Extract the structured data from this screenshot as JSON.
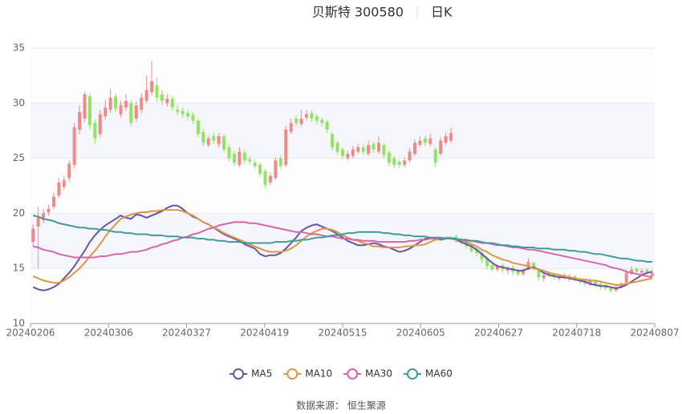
{
  "chart_data": {
    "type": "candlestick",
    "title": "贝斯特 300580",
    "subtitle": "日K",
    "source": "数据来源： 恒生聚源",
    "categories": [
      "20240206",
      null,
      null,
      null,
      null,
      null,
      null,
      null,
      null,
      null,
      null,
      null,
      null,
      null,
      null,
      "20240306",
      null,
      null,
      null,
      null,
      null,
      null,
      null,
      null,
      null,
      null,
      null,
      null,
      null,
      null,
      "20240327",
      null,
      null,
      null,
      null,
      null,
      null,
      null,
      null,
      null,
      null,
      null,
      null,
      null,
      null,
      "20240419",
      null,
      null,
      null,
      null,
      null,
      null,
      null,
      null,
      null,
      null,
      null,
      null,
      null,
      null,
      "20240515",
      null,
      null,
      null,
      null,
      null,
      null,
      null,
      null,
      null,
      null,
      null,
      null,
      null,
      null,
      "20240605",
      null,
      null,
      null,
      null,
      null,
      null,
      null,
      null,
      null,
      null,
      null,
      null,
      null,
      null,
      "20240627",
      null,
      null,
      null,
      null,
      null,
      null,
      null,
      null,
      null,
      null,
      null,
      null,
      null,
      null,
      "20240718",
      null,
      null,
      null,
      null,
      null,
      null,
      null,
      null,
      null,
      null,
      null,
      null,
      null,
      null,
      "20240807"
    ],
    "candles": {
      "open": [
        17.4,
        18.8,
        19.4,
        20.1,
        20.6,
        21.6,
        22.4,
        23.2,
        24.4,
        27.6,
        28.6,
        30.6,
        28.2,
        27.2,
        28.8,
        29.4,
        30.6,
        29.0,
        29.6,
        30.0,
        28.6,
        29.4,
        30.2,
        31.0,
        31.6,
        30.8,
        30.0,
        30.4,
        29.4,
        29.3,
        29.1,
        28.9,
        28.4,
        27.4,
        26.2,
        27.0,
        26.3,
        27.0,
        26.0,
        25.4,
        24.4,
        25.5,
        24.9,
        24.6,
        24.4,
        23.8,
        22.8,
        23.2,
        25.0,
        24.4,
        27.4,
        28.6,
        28.1,
        28.7,
        29.1,
        28.8,
        28.5,
        28.3,
        27.2,
        26.4,
        25.8,
        25.0,
        25.2,
        25.6,
        26.0,
        25.4,
        26.3,
        25.6,
        26.2,
        25.5,
        25.0,
        24.7,
        24.4,
        24.8,
        25.4,
        26.2,
        26.8,
        26.3,
        25.8,
        25.4,
        26.4,
        26.6,
        17.9,
        17.6,
        17.4,
        17.1,
        16.7,
        16.4,
        15.9,
        15.3,
        14.9,
        15.3,
        14.8,
        15.1,
        14.8,
        14.5,
        14.9,
        15.5,
        15.0,
        14.1,
        14.6,
        14.5,
        14.1,
        14.4,
        14.0,
        14.3,
        14.1,
        13.9,
        13.5,
        13.9,
        13.6,
        13.5,
        13.2,
        13.0,
        13.3,
        13.7,
        14.5,
        15.0,
        14.6,
        14.9,
        14.3
      ],
      "close": [
        18.6,
        19.6,
        20.0,
        20.4,
        21.5,
        22.8,
        23.0,
        24.5,
        27.8,
        29.2,
        30.8,
        28.0,
        26.8,
        29.0,
        29.6,
        30.5,
        29.5,
        29.8,
        30.2,
        28.2,
        29.8,
        30.5,
        31.2,
        32.0,
        30.5,
        30.2,
        30.4,
        29.6,
        29.2,
        29.0,
        28.8,
        28.4,
        27.2,
        26.4,
        26.8,
        26.6,
        27.0,
        25.8,
        25.0,
        24.6,
        25.6,
        24.8,
        24.7,
        24.3,
        23.6,
        22.6,
        23.4,
        24.8,
        24.3,
        27.6,
        28.2,
        28.2,
        28.6,
        29.0,
        28.6,
        28.4,
        28.2,
        27.6,
        26.0,
        25.6,
        25.2,
        25.4,
        25.8,
        26.0,
        25.6,
        26.2,
        25.8,
        26.4,
        25.3,
        24.6,
        24.4,
        24.4,
        24.8,
        25.6,
        26.4,
        26.6,
        26.4,
        26.8,
        24.6,
        26.6,
        27.0,
        27.3,
        17.6,
        17.3,
        17.0,
        16.6,
        16.4,
        15.8,
        15.2,
        14.9,
        15.2,
        14.9,
        15.0,
        14.7,
        14.5,
        14.8,
        15.6,
        15.0,
        14.2,
        14.4,
        14.4,
        14.2,
        14.3,
        14.1,
        14.3,
        14.0,
        13.8,
        13.6,
        13.9,
        13.5,
        13.4,
        13.2,
        13.0,
        13.3,
        13.6,
        14.6,
        14.9,
        14.7,
        14.8,
        14.7,
        14.6
      ],
      "high": [
        19.0,
        20.6,
        20.4,
        20.8,
        21.9,
        23.2,
        23.4,
        24.8,
        28.2,
        29.8,
        31.0,
        30.9,
        28.5,
        29.4,
        30.3,
        31.3,
        30.9,
        30.2,
        30.8,
        30.3,
        30.2,
        30.9,
        32.5,
        33.8,
        32.4,
        31.2,
        30.8,
        30.7,
        29.8,
        29.6,
        29.4,
        29.2,
        28.6,
        27.7,
        27.1,
        27.3,
        27.3,
        27.2,
        26.3,
        25.7,
        26.0,
        25.8,
        25.2,
        24.9,
        24.6,
        24.0,
        23.7,
        25.1,
        25.3,
        27.9,
        28.6,
        28.9,
        29.4,
        29.4,
        29.3,
        29.0,
        28.7,
        28.5,
        27.4,
        26.6,
        26.0,
        25.7,
        26.1,
        26.3,
        26.3,
        26.6,
        26.5,
        27.0,
        26.4,
        25.7,
        25.2,
        24.9,
        25.1,
        25.9,
        26.7,
        27.0,
        27.0,
        27.2,
        26.0,
        26.9,
        27.3,
        27.8,
        18.1,
        17.8,
        17.6,
        17.3,
        16.9,
        16.6,
        16.1,
        15.5,
        15.4,
        15.5,
        15.2,
        15.3,
        15.0,
        15.0,
        15.9,
        15.6,
        15.1,
        14.6,
        14.8,
        14.6,
        14.5,
        14.6,
        14.5,
        14.4,
        14.2,
        14.0,
        14.1,
        14.0,
        13.7,
        13.6,
        13.3,
        13.5,
        13.8,
        14.9,
        15.2,
        15.1,
        15.0,
        15.0,
        14.9
      ],
      "low": [
        17.0,
        15.0,
        19.1,
        19.8,
        20.4,
        21.4,
        22.1,
        22.9,
        24.1,
        27.2,
        28.3,
        27.6,
        26.3,
        26.9,
        28.5,
        29.1,
        29.2,
        28.7,
        29.3,
        27.9,
        28.3,
        29.1,
        30.0,
        30.7,
        30.1,
        29.8,
        29.7,
        29.3,
        28.9,
        28.7,
        28.5,
        28.1,
        26.9,
        26.1,
        26.0,
        26.3,
        26.0,
        25.5,
        24.7,
        24.3,
        24.2,
        24.5,
        24.4,
        24.0,
        23.3,
        22.3,
        22.6,
        23.0,
        24.0,
        24.2,
        27.2,
        27.9,
        27.9,
        28.4,
        28.3,
        28.1,
        27.9,
        27.3,
        25.7,
        25.3,
        24.9,
        24.8,
        25.0,
        25.4,
        25.3,
        25.2,
        25.5,
        25.4,
        25.0,
        24.3,
        24.1,
        24.1,
        24.2,
        24.6,
        25.2,
        26.0,
        26.1,
        26.1,
        24.2,
        25.2,
        26.2,
        26.4,
        17.3,
        17.1,
        16.8,
        16.4,
        16.1,
        15.5,
        14.9,
        14.7,
        14.7,
        14.6,
        14.5,
        14.4,
        14.3,
        14.3,
        14.8,
        14.8,
        13.9,
        13.8,
        14.2,
        14.0,
        13.9,
        13.9,
        13.8,
        13.8,
        13.6,
        13.4,
        13.4,
        13.3,
        13.1,
        13.0,
        12.8,
        12.9,
        13.2,
        13.6,
        14.4,
        14.5,
        14.5,
        14.5,
        14.2
      ]
    },
    "up_color": "#f08a8a",
    "down_color": "#92e35f",
    "series": [
      {
        "name": "MA5",
        "color": "#6b54a6",
        "values": [
          13.3,
          13.1,
          13.0,
          13.1,
          13.3,
          13.6,
          14.1,
          14.6,
          15.2,
          15.9,
          16.6,
          17.4,
          18.0,
          18.5,
          18.9,
          19.2,
          19.5,
          19.8,
          19.6,
          19.5,
          19.9,
          19.8,
          19.6,
          19.8,
          20.0,
          20.2,
          20.5,
          20.7,
          20.7,
          20.4,
          20.0,
          19.7,
          19.5,
          19.2,
          19.0,
          18.7,
          18.4,
          18.1,
          17.9,
          17.7,
          17.5,
          17.2,
          17.0,
          16.8,
          16.3,
          16.1,
          16.2,
          16.2,
          16.4,
          16.8,
          17.3,
          17.8,
          18.4,
          18.7,
          18.9,
          19.0,
          18.8,
          18.6,
          18.4,
          18.1,
          17.8,
          17.5,
          17.3,
          17.1,
          17.1,
          17.2,
          17.3,
          17.2,
          17.0,
          16.9,
          16.7,
          16.5,
          16.6,
          16.8,
          17.1,
          17.4,
          17.7,
          17.8,
          17.7,
          17.6,
          17.7,
          17.7,
          17.6,
          17.4,
          17.2,
          17.0,
          16.7,
          16.3,
          15.9,
          15.5,
          15.2,
          15.1,
          15.0,
          14.9,
          14.8,
          14.8,
          15.0,
          15.1,
          14.9,
          14.6,
          14.4,
          14.3,
          14.2,
          14.2,
          14.1,
          14.0,
          13.9,
          13.8,
          13.6,
          13.5,
          13.4,
          13.4,
          13.3,
          13.2,
          13.3,
          13.5,
          13.8,
          14.1,
          14.4,
          14.6,
          14.7
        ]
      },
      {
        "name": "MA10",
        "color": "#dc9645",
        "values": [
          14.3,
          14.1,
          13.9,
          13.8,
          13.7,
          13.7,
          13.9,
          14.2,
          14.6,
          15.0,
          15.5,
          16.1,
          16.6,
          17.2,
          17.9,
          18.5,
          19.0,
          19.5,
          19.7,
          19.9,
          20.0,
          20.1,
          20.1,
          20.2,
          20.2,
          20.3,
          20.3,
          20.3,
          20.3,
          20.2,
          20.0,
          19.8,
          19.5,
          19.2,
          19.0,
          18.7,
          18.5,
          18.2,
          18.0,
          17.8,
          17.6,
          17.4,
          17.2,
          17.0,
          16.8,
          16.6,
          16.5,
          16.5,
          16.5,
          16.6,
          16.8,
          17.1,
          17.5,
          17.9,
          18.2,
          18.4,
          18.6,
          18.6,
          18.5,
          18.3,
          18.0,
          17.8,
          17.6,
          17.5,
          17.3,
          17.2,
          17.0,
          17.0,
          16.9,
          16.9,
          16.9,
          16.9,
          17.0,
          17.0,
          17.1,
          17.1,
          17.2,
          17.4,
          17.6,
          17.7,
          17.8,
          17.8,
          17.7,
          17.6,
          17.4,
          17.2,
          17.0,
          16.7,
          16.5,
          16.2,
          16.0,
          15.8,
          15.7,
          15.5,
          15.4,
          15.3,
          15.2,
          15.0,
          14.9,
          14.8,
          14.6,
          14.5,
          14.4,
          14.3,
          14.2,
          14.1,
          14.0,
          14.0,
          13.9,
          13.9,
          13.8,
          13.7,
          13.6,
          13.5,
          13.5,
          13.6,
          13.7,
          13.8,
          13.9,
          14.0,
          14.1
        ]
      },
      {
        "name": "MA30",
        "color": "#d565ad",
        "values": [
          17.0,
          16.9,
          16.7,
          16.6,
          16.5,
          16.3,
          16.2,
          16.1,
          16.0,
          16.0,
          16.0,
          16.0,
          16.0,
          16.1,
          16.1,
          16.2,
          16.3,
          16.3,
          16.4,
          16.5,
          16.5,
          16.6,
          16.7,
          16.9,
          17.0,
          17.2,
          17.3,
          17.5,
          17.6,
          17.8,
          17.9,
          18.1,
          18.2,
          18.4,
          18.6,
          18.7,
          18.9,
          19.0,
          19.1,
          19.2,
          19.2,
          19.2,
          19.1,
          19.1,
          19.0,
          18.9,
          18.8,
          18.7,
          18.6,
          18.5,
          18.4,
          18.3,
          18.3,
          18.2,
          18.1,
          18.1,
          18.0,
          17.9,
          17.9,
          17.8,
          17.7,
          17.7,
          17.6,
          17.6,
          17.5,
          17.5,
          17.5,
          17.4,
          17.4,
          17.4,
          17.4,
          17.4,
          17.4,
          17.5,
          17.5,
          17.6,
          17.6,
          17.7,
          17.7,
          17.7,
          17.7,
          17.7,
          17.6,
          17.6,
          17.5,
          17.5,
          17.4,
          17.3,
          17.3,
          17.2,
          17.1,
          17.1,
          17.0,
          16.9,
          16.9,
          16.8,
          16.7,
          16.7,
          16.6,
          16.5,
          16.4,
          16.3,
          16.2,
          16.1,
          16.0,
          15.9,
          15.8,
          15.7,
          15.6,
          15.5,
          15.4,
          15.3,
          15.1,
          15.0,
          14.9,
          14.7,
          14.6,
          14.5,
          14.4,
          14.3,
          14.2
        ]
      },
      {
        "name": "MA60",
        "color": "#3f9a9c",
        "values": [
          19.8,
          19.7,
          19.5,
          19.4,
          19.3,
          19.1,
          19.0,
          18.9,
          18.8,
          18.7,
          18.7,
          18.6,
          18.6,
          18.5,
          18.5,
          18.4,
          18.3,
          18.3,
          18.2,
          18.2,
          18.1,
          18.1,
          18.1,
          18.0,
          18.0,
          18.0,
          17.9,
          17.9,
          17.9,
          17.8,
          17.8,
          17.8,
          17.7,
          17.7,
          17.6,
          17.6,
          17.5,
          17.5,
          17.4,
          17.4,
          17.4,
          17.3,
          17.3,
          17.3,
          17.3,
          17.3,
          17.3,
          17.4,
          17.4,
          17.4,
          17.5,
          17.5,
          17.6,
          17.6,
          17.7,
          17.8,
          17.8,
          17.9,
          18.0,
          18.0,
          18.1,
          18.2,
          18.2,
          18.3,
          18.3,
          18.3,
          18.3,
          18.3,
          18.2,
          18.2,
          18.1,
          18.1,
          18.0,
          18.0,
          17.9,
          17.9,
          17.9,
          17.8,
          17.8,
          17.8,
          17.7,
          17.7,
          17.7,
          17.6,
          17.6,
          17.5,
          17.5,
          17.4,
          17.3,
          17.3,
          17.2,
          17.1,
          17.1,
          17.0,
          17.0,
          16.9,
          16.9,
          16.9,
          16.8,
          16.8,
          16.8,
          16.7,
          16.7,
          16.7,
          16.6,
          16.6,
          16.5,
          16.5,
          16.4,
          16.3,
          16.3,
          16.2,
          16.1,
          16.0,
          15.9,
          15.9,
          15.8,
          15.7,
          15.7,
          15.6,
          15.6
        ]
      }
    ],
    "ylim": [
      10,
      35
    ],
    "yticks": [
      10,
      15,
      20,
      25,
      30,
      35
    ],
    "split_area": true,
    "legend": "bottom"
  }
}
